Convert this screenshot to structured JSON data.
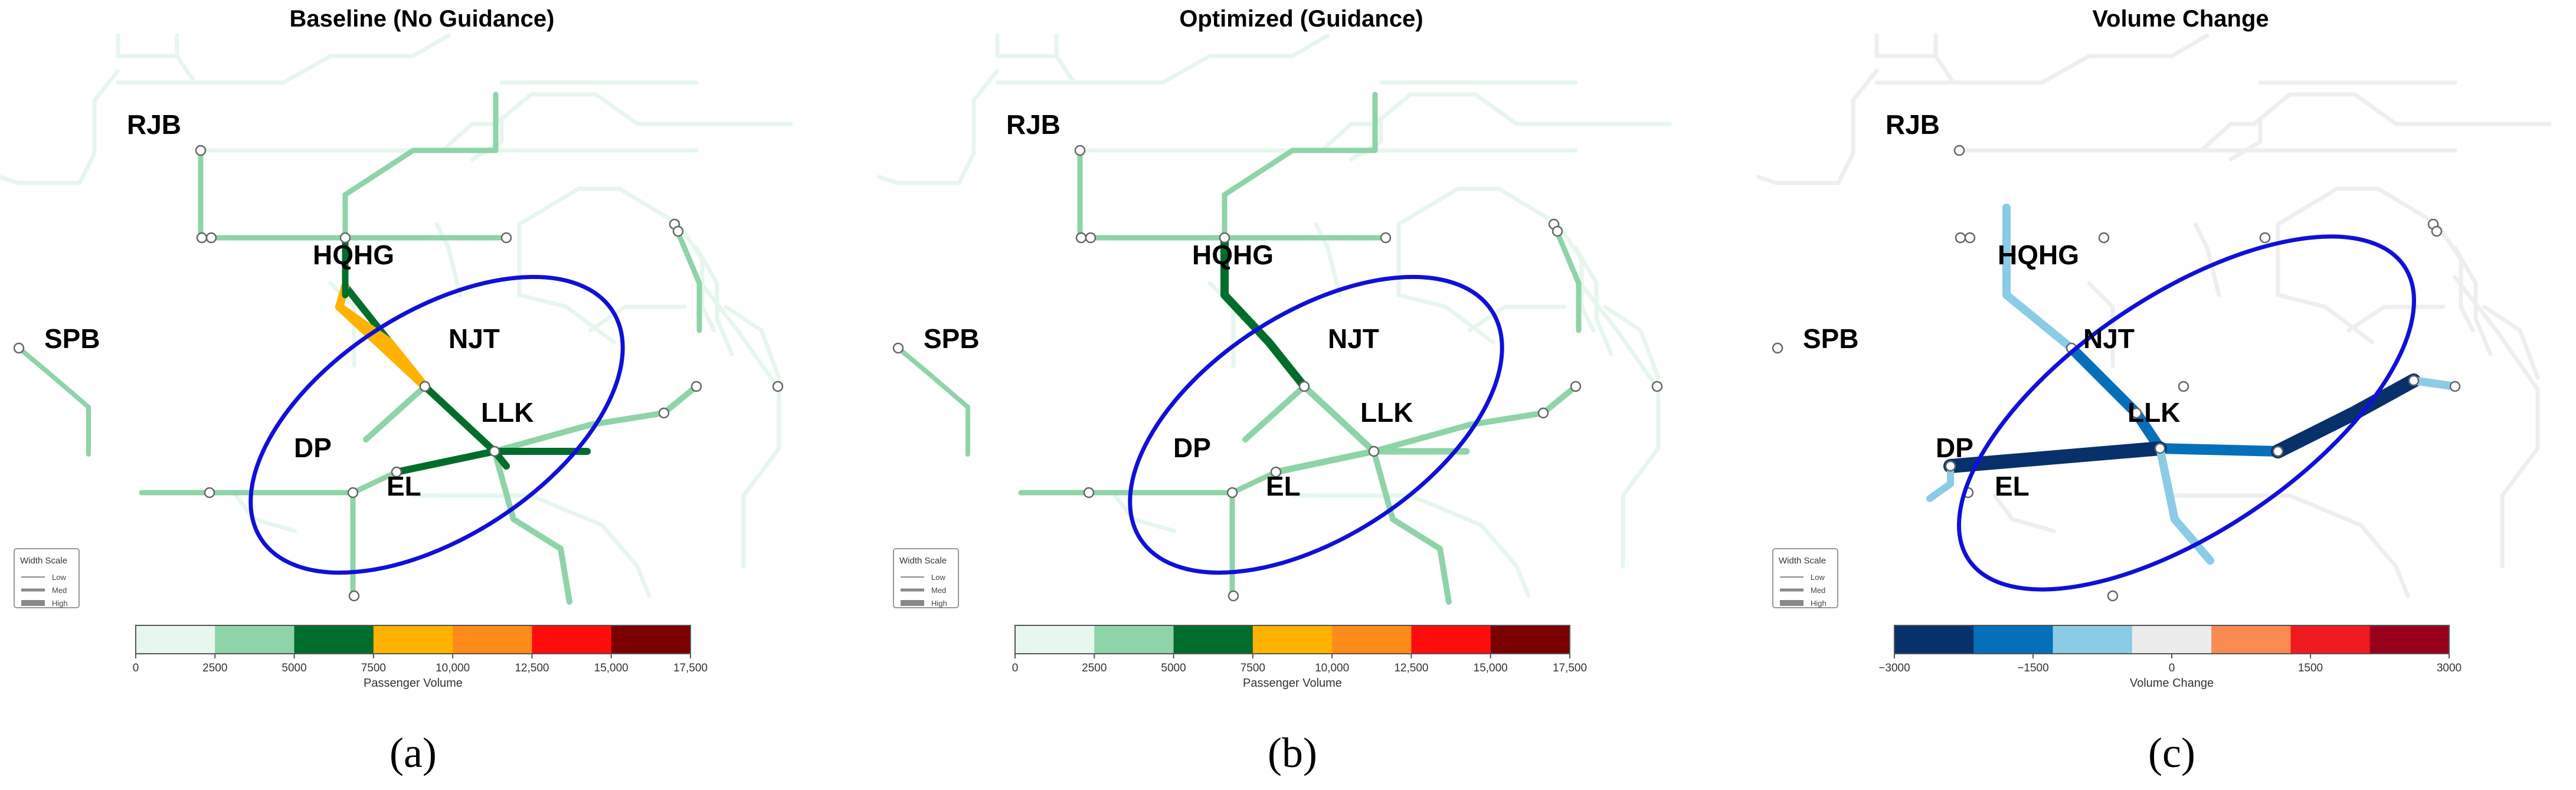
{
  "panels": [
    {
      "key": "a",
      "title": "Baseline (No Guidance)",
      "caption": "(a)",
      "legend": {
        "title": "Width Scale",
        "items": [
          "Low",
          "Med",
          "High"
        ]
      },
      "colorbar": {
        "label": "Passenger Volume",
        "colors": [
          "#e8f7ee",
          "#8fd3a8",
          "#006d2c",
          "#ffb300",
          "#ff8c1a",
          "#ff0d0d",
          "#7a0000"
        ],
        "ticks": [
          "0",
          "2500",
          "5000",
          "7500",
          "10,000",
          "12,500",
          "15,000",
          "17,500"
        ]
      },
      "stations": [
        "RJB",
        "HQHG",
        "SPB",
        "NJT",
        "LLK",
        "DP",
        "EL"
      ]
    },
    {
      "key": "b",
      "title": "Optimized (Guidance)",
      "caption": "(b)",
      "legend": {
        "title": "Width Scale",
        "items": [
          "Low",
          "Med",
          "High"
        ]
      },
      "colorbar": {
        "label": "Passenger Volume",
        "colors": [
          "#e8f7ee",
          "#8fd3a8",
          "#006d2c",
          "#ffb300",
          "#ff8c1a",
          "#ff0d0d",
          "#7a0000"
        ],
        "ticks": [
          "0",
          "2500",
          "5000",
          "7500",
          "10,000",
          "12,500",
          "15,000",
          "17,500"
        ]
      },
      "stations": [
        "RJB",
        "HQHG",
        "SPB",
        "NJT",
        "LLK",
        "DP",
        "EL"
      ]
    },
    {
      "key": "c",
      "title": "Volume Change",
      "caption": "(c)",
      "legend": {
        "title": "Width Scale",
        "items": [
          "Low",
          "Med",
          "High"
        ]
      },
      "colorbar": {
        "label": "Volume Change",
        "colors": [
          "#08306b",
          "#0570b9",
          "#8ccbe6",
          "#ececec",
          "#f88a52",
          "#ef1a1f",
          "#99001c"
        ],
        "ticks": [
          "−3000",
          "−1500",
          "0",
          "1500",
          "3000"
        ]
      },
      "stations": [
        "RJB",
        "HQHG",
        "SPB",
        "NJT",
        "LLK",
        "DP",
        "EL"
      ]
    }
  ],
  "network_colors": {
    "background_line_ab": "#e6f6ec",
    "background_line_c": "#eeeeee",
    "low": "#8fd3a8",
    "mid": "#006d2c",
    "high": "#ffb300",
    "drop_light": "#8ccbe6",
    "drop_mid": "#0570b9",
    "drop_dark": "#08306b",
    "focus_ellipse": "#1010d8"
  }
}
